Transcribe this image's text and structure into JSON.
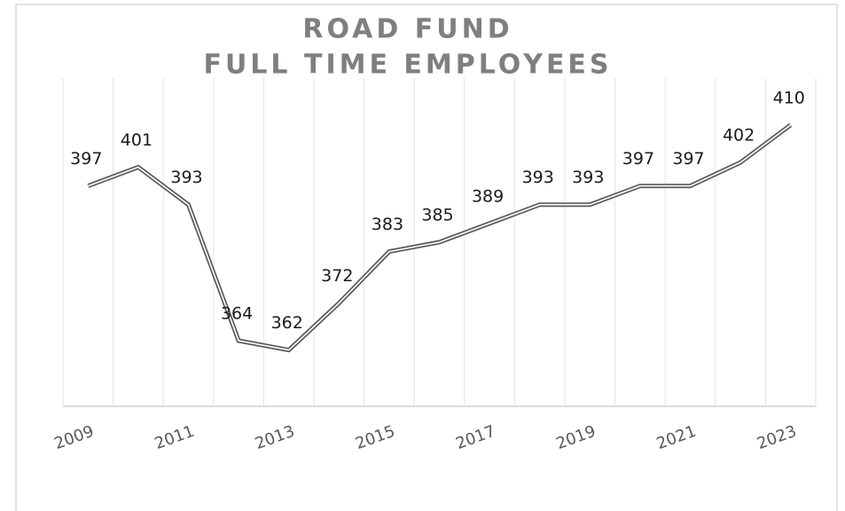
{
  "chart_data": {
    "type": "line",
    "title": [
      "ROAD FUND",
      "FULL TIME EMPLOYEES"
    ],
    "categories": [
      "2009",
      null,
      "2011",
      null,
      "2013",
      null,
      "2015",
      null,
      "2017",
      null,
      "2019",
      null,
      "2021",
      null,
      "2023"
    ],
    "series": [
      {
        "name": "Full Time Employees",
        "color": "#595959",
        "values": [
          397,
          401,
          393,
          364,
          362,
          372,
          383,
          385,
          389,
          393,
          393,
          397,
          397,
          402,
          410
        ]
      }
    ],
    "ylim": [
      350,
      420
    ],
    "grid": true
  }
}
